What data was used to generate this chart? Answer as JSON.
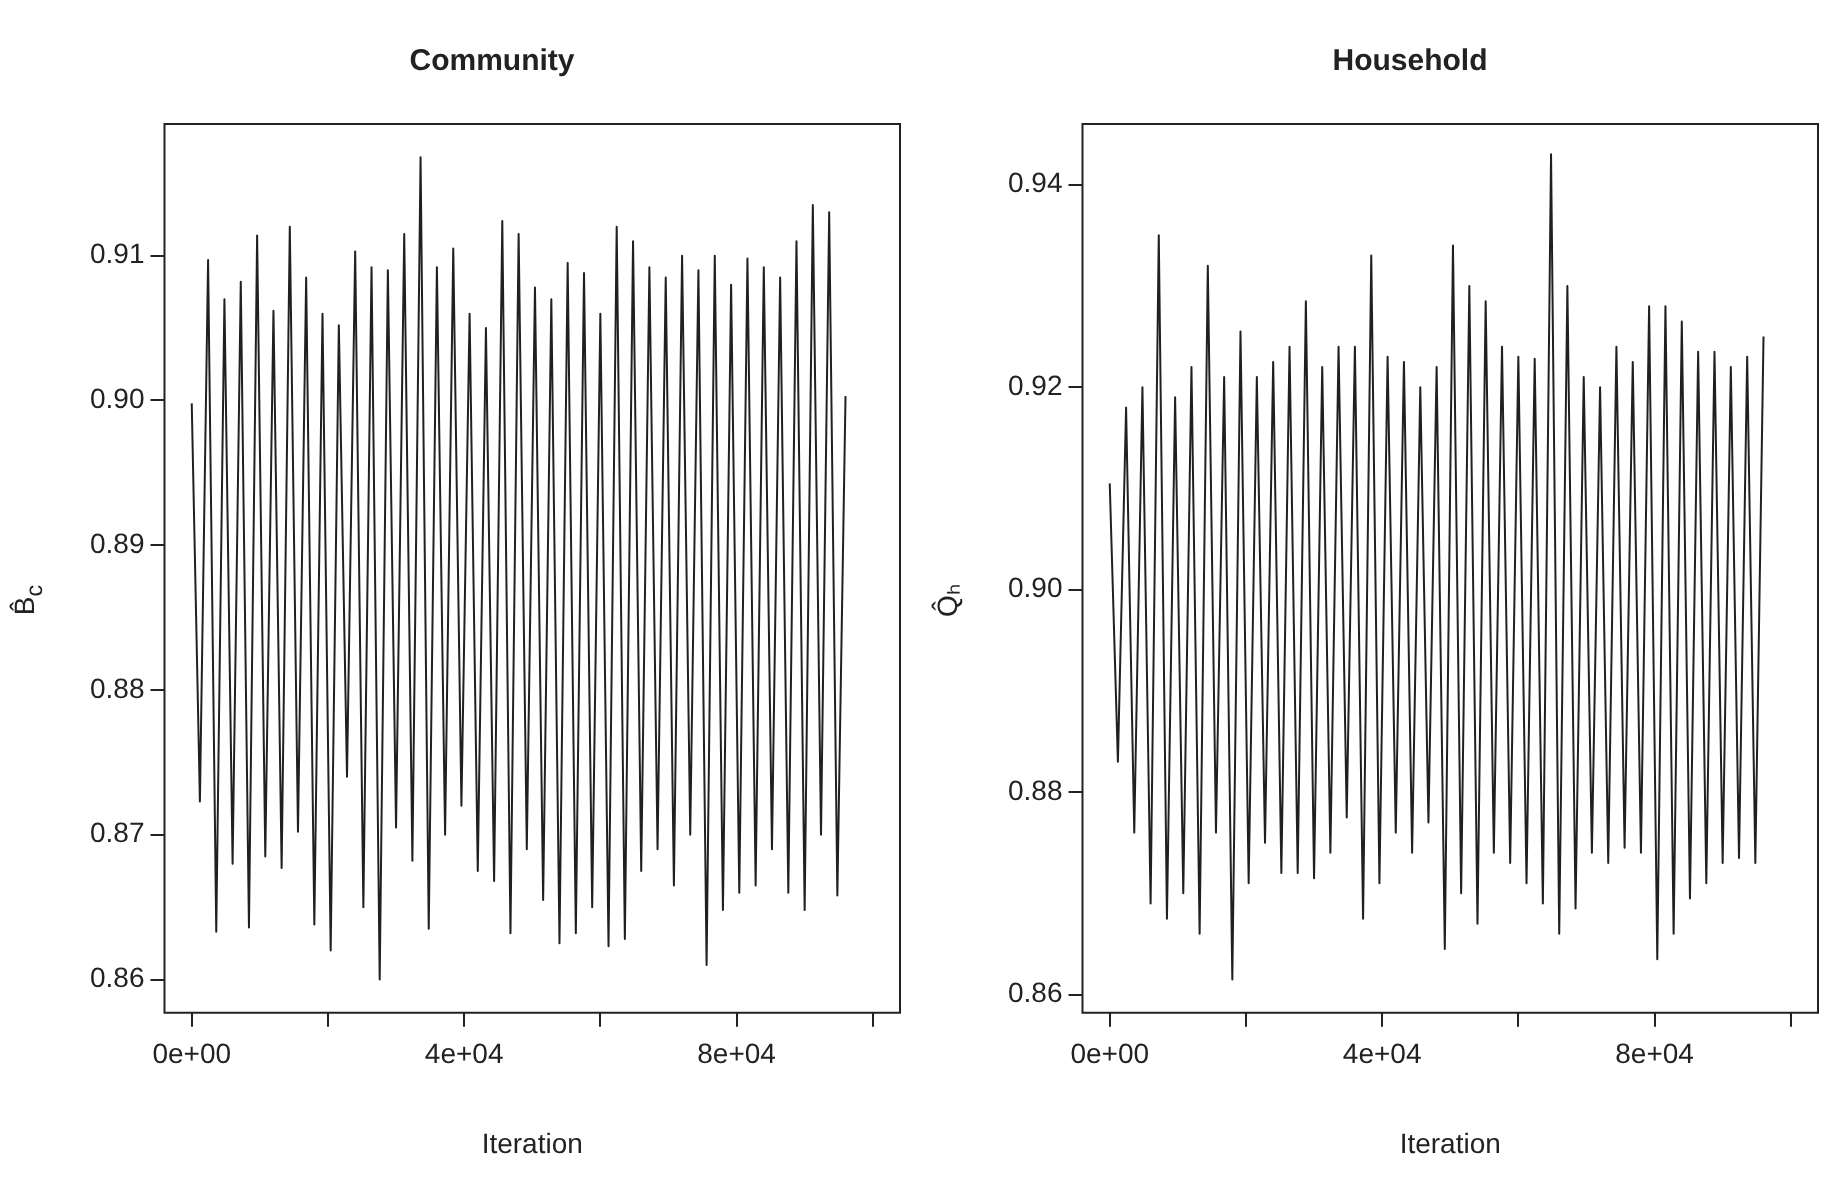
{
  "chart_data": [
    {
      "type": "line",
      "title": "Community",
      "xlabel": "Iteration",
      "ylabel": "B̂$_{c}$",
      "grid": false,
      "legend": false,
      "marker": "none",
      "line_style": "solid",
      "xlim": [
        -4000,
        104000
      ],
      "ylim": [
        0.8577,
        0.9191
      ],
      "xticks": [
        {
          "value": 0,
          "label": "0e+00"
        },
        {
          "value": 20000,
          "label": null
        },
        {
          "value": 40000,
          "label": "4e+04"
        },
        {
          "value": 60000,
          "label": null
        },
        {
          "value": 80000,
          "label": "8e+04"
        },
        {
          "value": 100000,
          "label": null
        }
      ],
      "yticks": [
        {
          "value": 0.86,
          "label": "0.86"
        },
        {
          "value": 0.87,
          "label": "0.87"
        },
        {
          "value": 0.88,
          "label": "0.88"
        },
        {
          "value": 0.89,
          "label": "0.89"
        },
        {
          "value": 0.9,
          "label": "0.90"
        },
        {
          "value": 0.91,
          "label": "0.91"
        }
      ],
      "series": [
        {
          "color": "#231f20",
          "x": [
            0,
            1200,
            2400,
            3600,
            4800,
            6000,
            7200,
            8400,
            9600,
            10800,
            12000,
            13200,
            14400,
            15600,
            16800,
            18000,
            19200,
            20400,
            21600,
            22800,
            24000,
            25200,
            26400,
            27600,
            28800,
            30000,
            31200,
            32400,
            33600,
            34800,
            36000,
            37200,
            38400,
            39600,
            40800,
            42000,
            43200,
            44400,
            45600,
            46800,
            48000,
            49200,
            50400,
            51600,
            52800,
            54000,
            55200,
            56400,
            57600,
            58800,
            60000,
            61200,
            62400,
            63600,
            64800,
            66000,
            67200,
            68400,
            69600,
            70800,
            72000,
            73200,
            74400,
            75600,
            76800,
            78000,
            79200,
            80400,
            81600,
            82800,
            84000,
            85200,
            86400,
            87600,
            88800,
            90000,
            91200,
            92400,
            93600,
            94800,
            96000
          ],
          "values": [
            0.8998,
            0.8723,
            0.9097,
            0.8633,
            0.907,
            0.868,
            0.9082,
            0.8636,
            0.9114,
            0.8685,
            0.9062,
            0.8677,
            0.912,
            0.8702,
            0.9085,
            0.8638,
            0.906,
            0.862,
            0.9052,
            0.874,
            0.9103,
            0.865,
            0.9092,
            0.86,
            0.909,
            0.8705,
            0.9115,
            0.8682,
            0.9168,
            0.8635,
            0.9092,
            0.87,
            0.9105,
            0.872,
            0.906,
            0.8675,
            0.905,
            0.8668,
            0.9124,
            0.8632,
            0.9115,
            0.869,
            0.9078,
            0.8655,
            0.907,
            0.8625,
            0.9095,
            0.8632,
            0.9088,
            0.865,
            0.906,
            0.8623,
            0.912,
            0.8628,
            0.911,
            0.8675,
            0.9092,
            0.869,
            0.9085,
            0.8665,
            0.91,
            0.87,
            0.909,
            0.861,
            0.91,
            0.8648,
            0.908,
            0.866,
            0.9098,
            0.8665,
            0.9092,
            0.869,
            0.9085,
            0.866,
            0.911,
            0.8648,
            0.9135,
            0.87,
            0.913,
            0.8658,
            0.9003
          ]
        }
      ]
    },
    {
      "type": "line",
      "title": "Household",
      "xlabel": "Iteration",
      "ylabel": "Q̂ₕ",
      "grid": false,
      "legend": false,
      "marker": "none",
      "line_style": "solid",
      "xlim": [
        -4000,
        104000
      ],
      "ylim": [
        0.8582,
        0.946
      ],
      "xticks": [
        {
          "value": 0,
          "label": "0e+00"
        },
        {
          "value": 20000,
          "label": null
        },
        {
          "value": 40000,
          "label": "4e+04"
        },
        {
          "value": 60000,
          "label": null
        },
        {
          "value": 80000,
          "label": "8e+04"
        },
        {
          "value": 100000,
          "label": null
        }
      ],
      "yticks": [
        {
          "value": 0.86,
          "label": "0.86"
        },
        {
          "value": 0.88,
          "label": "0.88"
        },
        {
          "value": 0.9,
          "label": "0.90"
        },
        {
          "value": 0.92,
          "label": "0.92"
        },
        {
          "value": 0.94,
          "label": "0.94"
        }
      ],
      "series": [
        {
          "color": "#231f20",
          "x": [
            0,
            1200,
            2400,
            3600,
            4800,
            6000,
            7200,
            8400,
            9600,
            10800,
            12000,
            13200,
            14400,
            15600,
            16800,
            18000,
            19200,
            20400,
            21600,
            22800,
            24000,
            25200,
            26400,
            27600,
            28800,
            30000,
            31200,
            32400,
            33600,
            34800,
            36000,
            37200,
            38400,
            39600,
            40800,
            42000,
            43200,
            44400,
            45600,
            46800,
            48000,
            49200,
            50400,
            51600,
            52800,
            54000,
            55200,
            56400,
            57600,
            58800,
            60000,
            61200,
            62400,
            63600,
            64800,
            66000,
            67200,
            68400,
            69600,
            70800,
            72000,
            73200,
            74400,
            75600,
            76800,
            78000,
            79200,
            80400,
            81600,
            82800,
            84000,
            85200,
            86400,
            87600,
            88800,
            90000,
            91200,
            92400,
            93600,
            94800,
            96000
          ],
          "values": [
            0.9105,
            0.883,
            0.918,
            0.876,
            0.92,
            0.869,
            0.935,
            0.8675,
            0.919,
            0.87,
            0.922,
            0.866,
            0.932,
            0.876,
            0.921,
            0.8615,
            0.9255,
            0.871,
            0.921,
            0.875,
            0.9225,
            0.872,
            0.924,
            0.872,
            0.9285,
            0.8715,
            0.922,
            0.874,
            0.924,
            0.8775,
            0.924,
            0.8675,
            0.933,
            0.871,
            0.923,
            0.876,
            0.9225,
            0.874,
            0.92,
            0.877,
            0.922,
            0.8645,
            0.934,
            0.87,
            0.93,
            0.867,
            0.9285,
            0.874,
            0.924,
            0.873,
            0.923,
            0.871,
            0.9228,
            0.869,
            0.943,
            0.866,
            0.93,
            0.8685,
            0.921,
            0.874,
            0.92,
            0.873,
            0.924,
            0.8745,
            0.9225,
            0.874,
            0.928,
            0.8635,
            0.928,
            0.866,
            0.9265,
            0.8695,
            0.9235,
            0.871,
            0.9235,
            0.873,
            0.922,
            0.8735,
            0.923,
            0.873,
            0.925
          ]
        }
      ]
    }
  ]
}
